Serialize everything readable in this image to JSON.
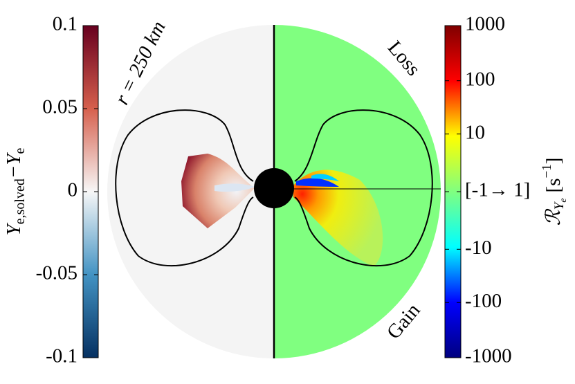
{
  "chart_data": {
    "type": "heatmap",
    "left_colorbar": {
      "label": [
        "Y",
        "e,solved",
        "−Y",
        "e"
      ],
      "ylim": [
        -0.1,
        0.1
      ],
      "yticks": [
        0.1,
        0.05,
        0,
        -0.05,
        -0.1
      ],
      "colors": [
        "#053061",
        "#4393c3",
        "#f7f7f7",
        "#d6604d",
        "#67001f"
      ]
    },
    "right_colorbar": {
      "label": [
        "ℛ",
        "Y",
        "e",
        "[s",
        "−1",
        "]"
      ],
      "yscale": "symlog",
      "linthresh": 1,
      "ylim": [
        -1000,
        1000
      ],
      "yticks": [
        1000,
        100,
        10,
        {
          "value": 0,
          "label": "[-1→ 1]"
        },
        -10,
        -100,
        -1000
      ],
      "colors": [
        "#00007f",
        "#0000ff",
        "#00ffff",
        "#80ff80",
        "#ffff00",
        "#ff0000",
        "#7f0000"
      ]
    },
    "annotations": [
      "r = 250 km",
      "Loss",
      "Gain"
    ]
  }
}
